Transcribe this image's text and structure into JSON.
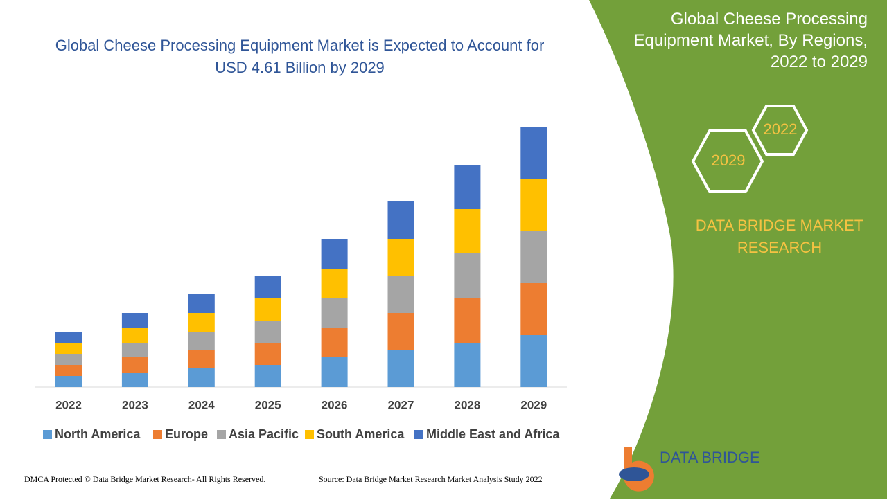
{
  "chart_data": {
    "type": "stacked-bar",
    "title": "Global Cheese Processing Equipment Market is Expected to Account for USD 4.61 Billion by 2029",
    "categories": [
      "2022",
      "2023",
      "2024",
      "2025",
      "2026",
      "2027",
      "2028",
      "2029"
    ],
    "series": [
      {
        "name": "North America",
        "color": "#5b9bd5",
        "values": [
          16,
          21,
          27,
          32,
          43,
          54,
          64,
          75
        ]
      },
      {
        "name": "Europe",
        "color": "#ed7d31",
        "values": [
          16,
          22,
          27,
          32,
          43,
          53,
          64,
          75
        ]
      },
      {
        "name": "Asia Pacific",
        "color": "#a5a5a5",
        "values": [
          16,
          21,
          26,
          32,
          42,
          54,
          65,
          75
        ]
      },
      {
        "name": "South America",
        "color": "#ffc000",
        "values": [
          16,
          22,
          27,
          32,
          43,
          53,
          64,
          75
        ]
      },
      {
        "name": "Middle East and Africa",
        "color": "#4472c4",
        "values": [
          16,
          21,
          27,
          33,
          43,
          54,
          64,
          75
        ]
      }
    ]
  },
  "panel": {
    "title": "Global Cheese Processing Equipment Market, By Regions, 2022 to 2029",
    "hex_start": "2022",
    "hex_end": "2029",
    "brand": "DATA BRIDGE MARKET RESEARCH"
  },
  "logo": "DATA BRIDGE",
  "footer": {
    "rights": "DMCA Protected © Data Bridge Market Research- All Rights Reserved.",
    "source": "Source: Data Bridge Market Research Market Analysis Study 2022"
  }
}
